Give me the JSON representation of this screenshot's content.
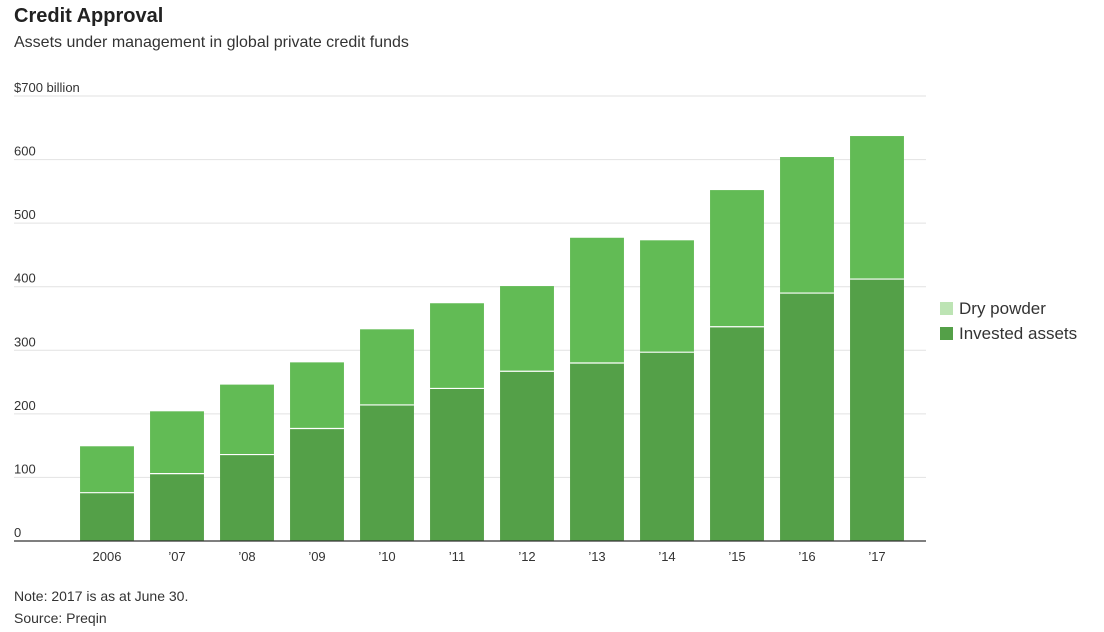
{
  "title": "Credit Approval",
  "subtitle": "Assets under management in global private credit funds",
  "note": "Note: 2017 is as at June 30.",
  "source": "Source: Preqin",
  "colors": {
    "dry_powder": "#62bb55",
    "invested_assets": "#54a048",
    "legend_dry_powder": "#bde4b4",
    "grid": "#e2e2e2",
    "axis": "#333333"
  },
  "chart_data": {
    "type": "bar",
    "stacked": true,
    "categories": [
      "2006",
      "’07",
      "’08",
      "’09",
      "’10",
      "’11",
      "’12",
      "’13",
      "’14",
      "’15",
      "’16",
      "’17"
    ],
    "series": [
      {
        "name": "Invested assets",
        "values": [
          76,
          106,
          136,
          177,
          214,
          240,
          267,
          280,
          297,
          337,
          390,
          412
        ]
      },
      {
        "name": "Dry powder",
        "values": [
          73,
          98,
          110,
          104,
          119,
          134,
          134,
          197,
          176,
          215,
          214,
          225
        ]
      }
    ],
    "ylim": [
      0,
      700
    ],
    "yticks": [
      0,
      100,
      200,
      300,
      400,
      500,
      600,
      700
    ],
    "ytick_labels": [
      "0",
      "100",
      "200",
      "300",
      "400",
      "500",
      "600",
      "$700 billion"
    ],
    "grid": true,
    "legend": {
      "placement": "right",
      "entries": [
        "Dry powder",
        "Invested assets"
      ]
    }
  }
}
